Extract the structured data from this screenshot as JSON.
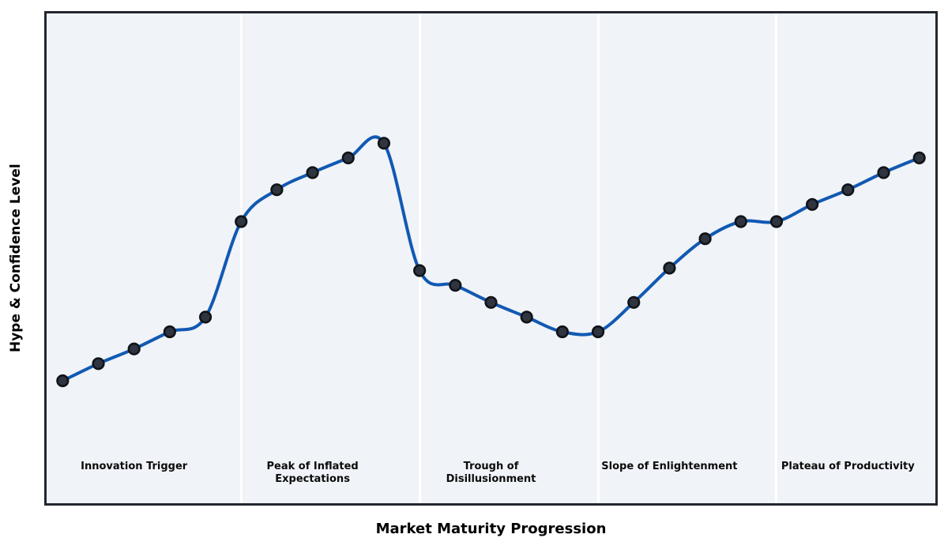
{
  "figure": {
    "background": "#ffffff",
    "plot_background": "#f0f3f7",
    "border_color": "#23272e",
    "divider_color": "#ffffff"
  },
  "chart_data": {
    "type": "line",
    "title": "",
    "xlabel": "Market Maturity Progression",
    "ylabel": "Hype & Confidence Level",
    "x": [
      0,
      1,
      2,
      3,
      4,
      5,
      6,
      7,
      8,
      9,
      10,
      11,
      12,
      13,
      14,
      15,
      16,
      17,
      18,
      19,
      20,
      21,
      22,
      23,
      24
    ],
    "values": [
      25,
      28.5,
      31.5,
      35,
      38,
      57.5,
      64,
      67.5,
      70.5,
      73.5,
      47.5,
      44.5,
      41,
      38,
      35,
      35,
      41,
      48,
      54,
      57.5,
      57.5,
      61,
      64,
      67.5,
      70.5
    ],
    "xlim": [
      -0.45,
      24.45
    ],
    "ylim": [
      0,
      100
    ],
    "grid": false,
    "legend": null,
    "tick_labels": "none",
    "smooth": true,
    "line_color": "#1159b3",
    "line_width": 4,
    "marker_fill": "#2e3440",
    "marker_stroke": "#101317",
    "marker_radius": 6.8,
    "dividers": [
      5,
      10,
      15,
      20
    ],
    "phases": [
      {
        "label": "Innovation Trigger",
        "x_start": -0.45,
        "x_end": 5,
        "label_x": 2
      },
      {
        "label": "Peak of Inflated Expectations",
        "x_start": 5,
        "x_end": 10,
        "label_x": 7
      },
      {
        "label": "Trough of Disillusionment",
        "x_start": 10,
        "x_end": 15,
        "label_x": 12
      },
      {
        "label": "Slope of Enlightenment",
        "x_start": 15,
        "x_end": 20,
        "label_x": 17
      },
      {
        "label": "Plateau of Productivity",
        "x_start": 20,
        "x_end": 24.45,
        "label_x": 22
      }
    ]
  }
}
